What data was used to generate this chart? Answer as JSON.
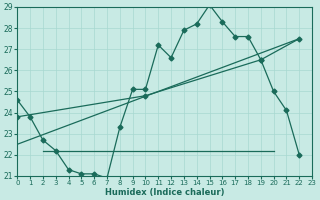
{
  "title": "",
  "xlabel": "Humidex (Indice chaleur)",
  "background_color": "#c8eae4",
  "grid_color": "#a8d8d0",
  "line_color": "#1a6b5a",
  "xlim": [
    0,
    23
  ],
  "ylim": [
    21,
    29
  ],
  "xticks": [
    0,
    1,
    2,
    3,
    4,
    5,
    6,
    7,
    8,
    9,
    10,
    11,
    12,
    13,
    14,
    15,
    16,
    17,
    18,
    19,
    20,
    21,
    22,
    23
  ],
  "yticks": [
    21,
    22,
    23,
    24,
    25,
    26,
    27,
    28,
    29
  ],
  "line1_x": [
    0,
    1,
    2,
    3,
    4,
    5,
    6,
    7,
    8,
    9,
    10,
    11,
    12,
    13,
    14,
    15,
    16,
    17,
    18,
    19,
    20,
    21,
    22
  ],
  "line1_y": [
    24.6,
    23.8,
    22.7,
    22.2,
    21.3,
    21.1,
    21.1,
    20.9,
    23.3,
    25.1,
    25.1,
    27.2,
    26.6,
    27.9,
    28.2,
    29.1,
    28.3,
    27.6,
    27.6,
    26.5,
    25.0,
    24.1,
    22.0
  ],
  "line2_x": [
    2,
    20
  ],
  "line2_y": [
    22.2,
    22.2
  ],
  "line3_x": [
    0,
    10,
    19,
    22
  ],
  "line3_y": [
    23.8,
    24.8,
    26.5,
    27.5
  ],
  "line4_x": [
    0,
    22
  ],
  "line4_y": [
    22.5,
    27.5
  ],
  "marker": "D",
  "markersize": 2.5,
  "linewidth": 0.9
}
